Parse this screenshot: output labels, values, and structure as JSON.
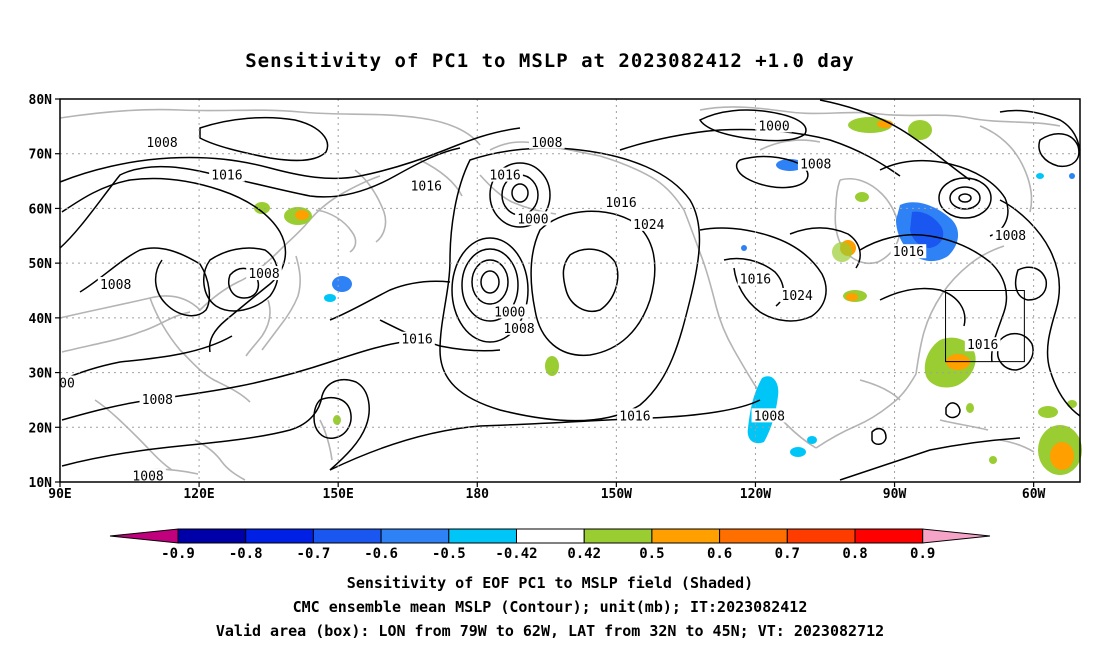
{
  "title": "Sensitivity of PC1 to MSLP at 2023082412 +1.0 day",
  "map": {
    "lat_ticks": [
      "80N",
      "70N",
      "60N",
      "50N",
      "40N",
      "30N",
      "20N",
      "10N"
    ],
    "lon_ticks": [
      "90E",
      "120E",
      "150E",
      "180",
      "150W",
      "120W",
      "90W",
      "60W"
    ],
    "lon_range": [
      90,
      310
    ],
    "lat_range": [
      10,
      80
    ],
    "contour_labels": [
      {
        "text": "1008",
        "lon": 112,
        "lat": 72
      },
      {
        "text": "1016",
        "lon": 126,
        "lat": 66
      },
      {
        "text": "1016",
        "lon": 169,
        "lat": 64
      },
      {
        "text": "1016",
        "lon": 186,
        "lat": 66
      },
      {
        "text": "1008",
        "lon": 195,
        "lat": 72
      },
      {
        "text": "1000",
        "lon": 192,
        "lat": 58
      },
      {
        "text": "1016",
        "lon": 211,
        "lat": 61
      },
      {
        "text": "1024",
        "lon": 217,
        "lat": 57
      },
      {
        "text": "1008",
        "lon": 134,
        "lat": 48
      },
      {
        "text": "1008",
        "lon": 102,
        "lat": 46
      },
      {
        "text": "1000",
        "lon": 187,
        "lat": 41
      },
      {
        "text": "1008",
        "lon": 189,
        "lat": 38
      },
      {
        "text": "1016",
        "lon": 167,
        "lat": 36
      },
      {
        "text": "1000",
        "lon": 244,
        "lat": 75
      },
      {
        "text": "1008",
        "lon": 253,
        "lat": 68
      },
      {
        "text": "1016",
        "lon": 240,
        "lat": 47
      },
      {
        "text": "1024",
        "lon": 249,
        "lat": 44
      },
      {
        "text": "1016",
        "lon": 273,
        "lat": 52
      },
      {
        "text": "1008",
        "lon": 295,
        "lat": 55
      },
      {
        "text": "1016",
        "lon": 289,
        "lat": 35
      },
      {
        "text": "1016",
        "lon": 214,
        "lat": 22
      },
      {
        "text": "1008",
        "lon": 243,
        "lat": 22
      },
      {
        "text": "1008",
        "lon": 111,
        "lat": 25
      },
      {
        "text": "1008",
        "lon": 109,
        "lat": 11
      },
      {
        "text": "00",
        "lon": 91.5,
        "lat": 28
      }
    ],
    "valid_box": {
      "lon_west": 281,
      "lon_east": 298,
      "lat_south": 32,
      "lat_north": 45
    },
    "colors": {
      "contour": "#000000",
      "coast": "#b4b4b4",
      "grid": "#a0a0a0"
    }
  },
  "colorbar": {
    "labels": [
      "-0.9",
      "-0.8",
      "-0.7",
      "-0.6",
      "-0.5",
      "-0.42",
      "0.42",
      "0.5",
      "0.6",
      "0.7",
      "0.8",
      "0.9"
    ],
    "colors": [
      "#c0007c",
      "#0000a8",
      "#0020e6",
      "#1a56f0",
      "#2e82f5",
      "#00c6f8",
      "#ffffff",
      "#9acd32",
      "#ff9f00",
      "#ff6f00",
      "#ff3c00",
      "#ff0000",
      "#f5a3c6"
    ]
  },
  "footer": {
    "line1": "Sensitivity of EOF PC1 to MSLP field (Shaded)",
    "line2": "CMC ensemble mean MSLP (Contour); unit(mb); IT:2023082412",
    "line3": "Valid area (box): LON from 79W to 62W, LAT from 32N to 45N; VT: 2023082712"
  }
}
